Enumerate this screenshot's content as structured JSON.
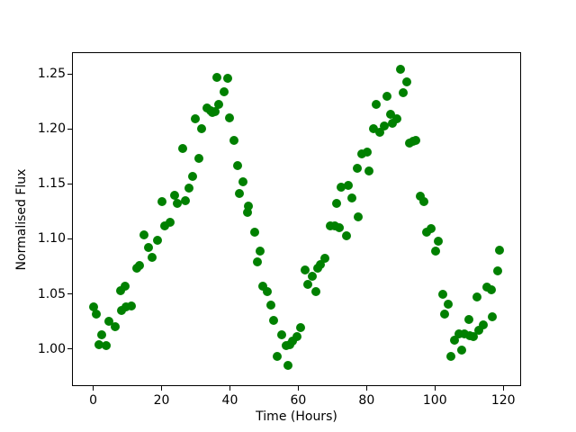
{
  "figure": {
    "background": "#ffffff",
    "text_color": "#000000"
  },
  "chart_data": {
    "type": "scatter",
    "title": "",
    "xlabel": "Time (Hours)",
    "ylabel": "Normalised Flux",
    "marker_color": "#008000",
    "marker_diameter_px": 10,
    "grid": false,
    "legend": null,
    "xlim": [
      -5.95,
      124.95
    ],
    "ylim": [
      0.967,
      1.269
    ],
    "xticks": [
      0,
      20,
      40,
      60,
      80,
      100,
      120
    ],
    "xticklabels": [
      "0",
      "20",
      "40",
      "60",
      "80",
      "100",
      "120"
    ],
    "yticks": [
      1.0,
      1.05,
      1.1,
      1.15,
      1.2,
      1.25
    ],
    "yticklabels": [
      "1.00",
      "1.05",
      "1.10",
      "1.15",
      "1.20",
      "1.25"
    ],
    "points": [
      [
        0.0,
        1.038
      ],
      [
        1.0,
        1.032
      ],
      [
        1.8,
        1.004
      ],
      [
        2.6,
        1.013
      ],
      [
        3.7,
        1.003
      ],
      [
        4.5,
        1.025
      ],
      [
        6.4,
        1.02
      ],
      [
        8.0,
        1.053
      ],
      [
        8.4,
        1.035
      ],
      [
        9.4,
        1.057
      ],
      [
        9.7,
        1.038
      ],
      [
        11.2,
        1.039
      ],
      [
        12.8,
        1.073
      ],
      [
        13.6,
        1.076
      ],
      [
        14.9,
        1.104
      ],
      [
        16.3,
        1.092
      ],
      [
        17.2,
        1.083
      ],
      [
        18.9,
        1.099
      ],
      [
        20.1,
        1.134
      ],
      [
        21.0,
        1.112
      ],
      [
        22.5,
        1.115
      ],
      [
        23.9,
        1.14
      ],
      [
        24.7,
        1.132
      ],
      [
        26.1,
        1.182
      ],
      [
        27.0,
        1.135
      ],
      [
        28.0,
        1.146
      ],
      [
        29.1,
        1.157
      ],
      [
        29.8,
        1.209
      ],
      [
        31.0,
        1.173
      ],
      [
        31.7,
        1.2
      ],
      [
        33.4,
        1.219
      ],
      [
        34.3,
        1.217
      ],
      [
        35.0,
        1.215
      ],
      [
        35.6,
        1.216
      ],
      [
        36.1,
        1.247
      ],
      [
        36.8,
        1.222
      ],
      [
        38.3,
        1.234
      ],
      [
        39.4,
        1.246
      ],
      [
        39.8,
        1.21
      ],
      [
        41.1,
        1.19
      ],
      [
        42.2,
        1.167
      ],
      [
        42.9,
        1.141
      ],
      [
        43.8,
        1.152
      ],
      [
        45.1,
        1.124
      ],
      [
        45.3,
        1.13
      ],
      [
        47.3,
        1.106
      ],
      [
        48.0,
        1.079
      ],
      [
        48.9,
        1.089
      ],
      [
        49.7,
        1.057
      ],
      [
        51.0,
        1.052
      ],
      [
        51.9,
        1.04
      ],
      [
        52.7,
        1.026
      ],
      [
        53.8,
        0.993
      ],
      [
        55.1,
        1.013
      ],
      [
        56.4,
        1.003
      ],
      [
        57.0,
        0.985
      ],
      [
        57.6,
        1.004
      ],
      [
        58.3,
        1.007
      ],
      [
        59.5,
        1.011
      ],
      [
        60.7,
        1.019
      ],
      [
        62.0,
        1.072
      ],
      [
        62.7,
        1.059
      ],
      [
        64.0,
        1.066
      ],
      [
        65.1,
        1.052
      ],
      [
        65.8,
        1.073
      ],
      [
        66.6,
        1.077
      ],
      [
        67.8,
        1.082
      ],
      [
        69.4,
        1.112
      ],
      [
        70.8,
        1.112
      ],
      [
        71.3,
        1.132
      ],
      [
        72.0,
        1.11
      ],
      [
        72.5,
        1.147
      ],
      [
        74.1,
        1.103
      ],
      [
        74.6,
        1.149
      ],
      [
        75.7,
        1.137
      ],
      [
        77.2,
        1.164
      ],
      [
        77.6,
        1.12
      ],
      [
        78.7,
        1.177
      ],
      [
        80.1,
        1.179
      ],
      [
        80.7,
        1.162
      ],
      [
        82.0,
        1.2
      ],
      [
        82.7,
        1.222
      ],
      [
        83.8,
        1.197
      ],
      [
        85.1,
        1.203
      ],
      [
        86.0,
        1.23
      ],
      [
        86.9,
        1.213
      ],
      [
        87.6,
        1.205
      ],
      [
        88.9,
        1.209
      ],
      [
        89.9,
        1.254
      ],
      [
        90.8,
        1.233
      ],
      [
        91.7,
        1.243
      ],
      [
        92.6,
        1.187
      ],
      [
        93.5,
        1.189
      ],
      [
        94.5,
        1.19
      ],
      [
        95.6,
        1.139
      ],
      [
        96.8,
        1.134
      ],
      [
        97.6,
        1.106
      ],
      [
        98.8,
        1.109
      ],
      [
        100.1,
        1.089
      ],
      [
        100.9,
        1.098
      ],
      [
        102.3,
        1.05
      ],
      [
        102.9,
        1.032
      ],
      [
        104.0,
        1.041
      ],
      [
        104.7,
        0.993
      ],
      [
        105.6,
        1.008
      ],
      [
        107.1,
        1.014
      ],
      [
        107.8,
        0.999
      ],
      [
        108.7,
        1.014
      ],
      [
        110.0,
        1.027
      ],
      [
        110.3,
        1.012
      ],
      [
        111.3,
        1.011
      ],
      [
        112.2,
        1.047
      ],
      [
        112.8,
        1.017
      ],
      [
        114.1,
        1.022
      ],
      [
        115.2,
        1.056
      ],
      [
        116.5,
        1.054
      ],
      [
        116.8,
        1.029
      ],
      [
        118.3,
        1.071
      ],
      [
        118.8,
        1.09
      ]
    ]
  }
}
